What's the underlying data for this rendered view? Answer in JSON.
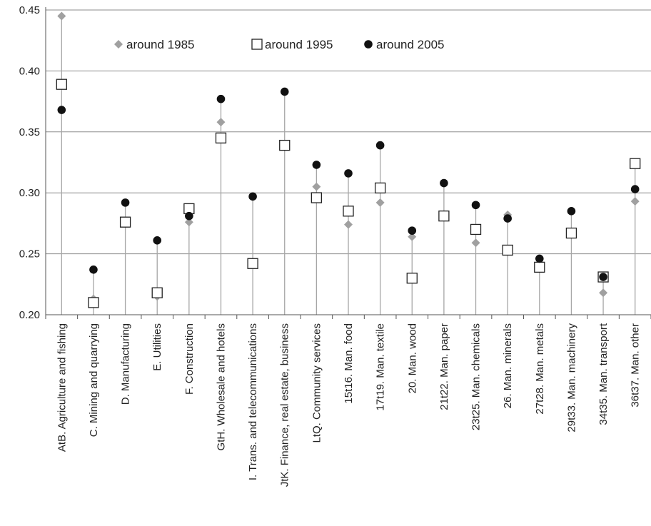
{
  "chart_data": {
    "type": "scatter",
    "title": "",
    "xlabel": "",
    "ylabel": "",
    "ylim": [
      0.2,
      0.45
    ],
    "yticks": [
      "0.20",
      "0.25",
      "0.30",
      "0.35",
      "0.40",
      "0.45"
    ],
    "grid": "horizontal",
    "legend_placement": "top",
    "categories": [
      "AtB. Agriculture and fishing",
      "C. Mining and quarrying",
      "D. Manufacturing",
      "E. Utilities",
      "F. Construction",
      "GtH. Wholesale and hotels",
      "I. Trans. and telecommunications",
      "JtK. Finance, real estate, business",
      "LtQ. Community services",
      "15t16. Man. food",
      "17t19. Man. textile",
      "20. Man. wood",
      "21t22. Man. paper",
      "23t25. Man. chemicals",
      "26. Man. minerals",
      "27t28. Man. metals",
      "29t33. Man. machinery",
      "34t35. Man. transport",
      "36t37. Man. other"
    ],
    "series": [
      {
        "name": "around 1985",
        "marker": "diamond",
        "color": "#a0a0a0",
        "values": [
          0.445,
          0.213,
          null,
          0.215,
          0.276,
          0.358,
          null,
          null,
          0.305,
          0.274,
          0.292,
          0.264,
          null,
          0.259,
          0.282,
          null,
          null,
          0.218,
          0.293
        ]
      },
      {
        "name": "around 1995",
        "marker": "square",
        "color": "#ffffff",
        "values": [
          0.389,
          0.21,
          0.276,
          0.218,
          0.287,
          0.345,
          0.242,
          0.339,
          0.296,
          0.285,
          0.304,
          0.23,
          0.281,
          0.27,
          0.253,
          0.239,
          0.267,
          0.231,
          0.324
        ]
      },
      {
        "name": "around 2005",
        "marker": "circle",
        "color": "#111111",
        "values": [
          0.368,
          0.237,
          0.292,
          0.261,
          0.281,
          0.377,
          0.297,
          0.383,
          0.323,
          0.316,
          0.339,
          0.269,
          0.308,
          0.29,
          0.279,
          0.246,
          0.285,
          0.231,
          0.303
        ]
      }
    ]
  }
}
